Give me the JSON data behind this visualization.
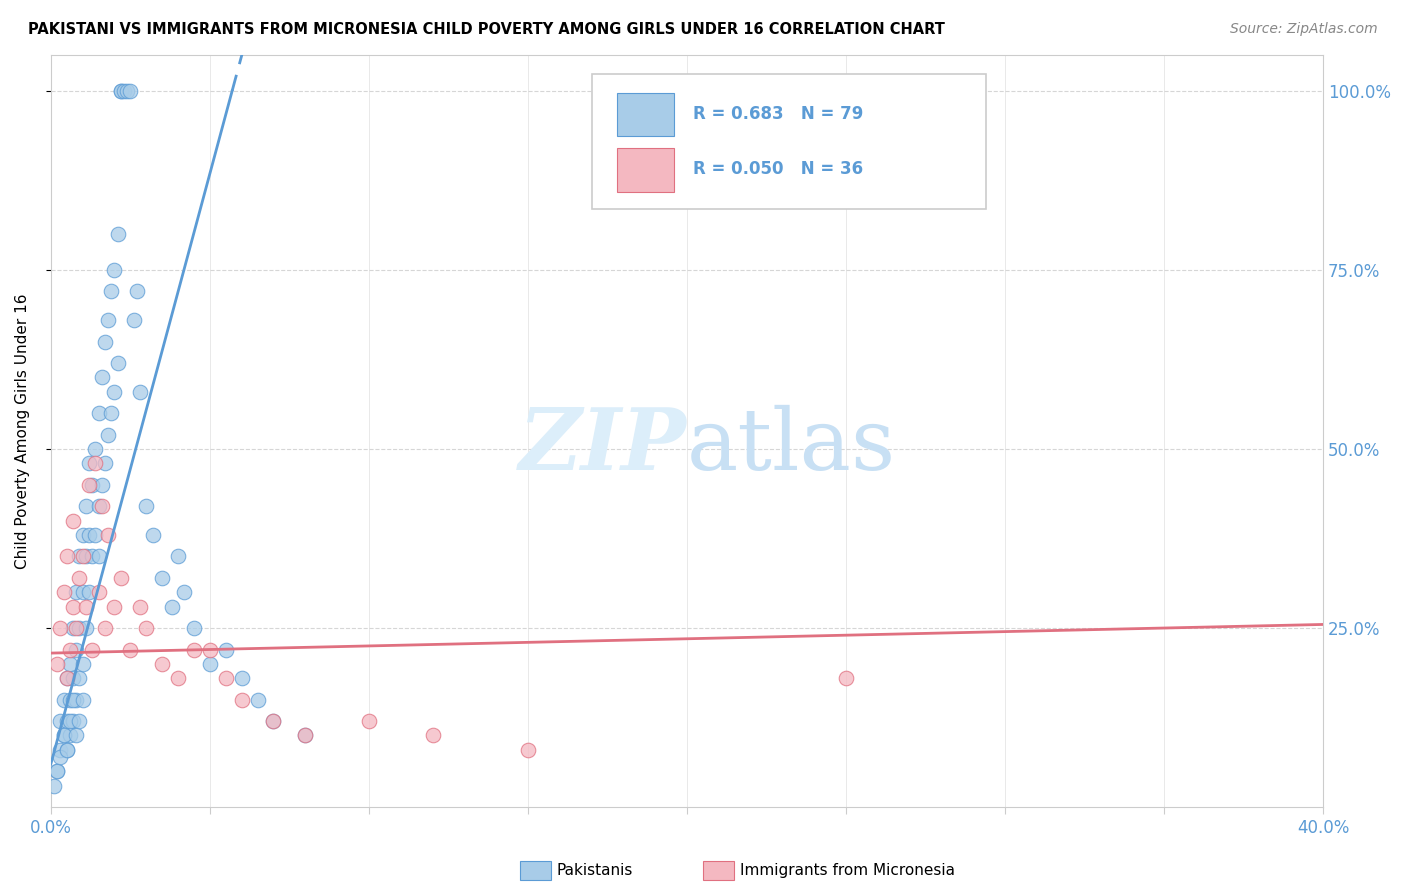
{
  "title": "PAKISTANI VS IMMIGRANTS FROM MICRONESIA CHILD POVERTY AMONG GIRLS UNDER 16 CORRELATION CHART",
  "source": "Source: ZipAtlas.com",
  "ylabel": "Child Poverty Among Girls Under 16",
  "watermark_zip": "ZIP",
  "watermark_atlas": "atlas",
  "legend_text1": "R = 0.683   N = 79",
  "legend_text2": "R = 0.050   N = 36",
  "legend_label1": "Pakistanis",
  "legend_label2": "Immigrants from Micronesia",
  "color_blue_fill": "#a8cce8",
  "color_blue_edge": "#5b9bd5",
  "color_pink_fill": "#f4b8c1",
  "color_pink_edge": "#e07080",
  "color_blue_line": "#5b9bd5",
  "color_pink_line": "#e07080",
  "color_blue_text": "#5b9bd5",
  "color_pink_text": "#e07080",
  "xlim": [
    0.0,
    0.4
  ],
  "ylim": [
    0.0,
    1.05
  ],
  "ytick_positions": [
    0.25,
    0.5,
    0.75,
    1.0
  ],
  "ytick_labels": [
    "25.0%",
    "50.0%",
    "75.0%",
    "100.0%"
  ],
  "xtick_left_label": "0.0%",
  "xtick_right_label": "40.0%",
  "pak_line_x0": 0.0,
  "pak_line_y0": 0.06,
  "pak_line_x1": 0.057,
  "pak_line_y1": 1.0,
  "pak_line_solid_end": 0.057,
  "pak_line_dash_end": 0.12,
  "mic_line_x0": 0.0,
  "mic_line_y0": 0.215,
  "mic_line_x1": 0.4,
  "mic_line_y1": 0.255,
  "pak_x": [
    0.002,
    0.003,
    0.003,
    0.004,
    0.004,
    0.005,
    0.005,
    0.005,
    0.006,
    0.006,
    0.006,
    0.007,
    0.007,
    0.007,
    0.008,
    0.008,
    0.008,
    0.009,
    0.009,
    0.009,
    0.01,
    0.01,
    0.01,
    0.011,
    0.011,
    0.011,
    0.012,
    0.012,
    0.012,
    0.013,
    0.013,
    0.014,
    0.014,
    0.015,
    0.015,
    0.015,
    0.016,
    0.016,
    0.017,
    0.017,
    0.018,
    0.018,
    0.019,
    0.019,
    0.02,
    0.02,
    0.021,
    0.021,
    0.022,
    0.022,
    0.023,
    0.024,
    0.025,
    0.026,
    0.027,
    0.028,
    0.03,
    0.032,
    0.035,
    0.038,
    0.04,
    0.042,
    0.045,
    0.05,
    0.055,
    0.06,
    0.065,
    0.07,
    0.08,
    0.001,
    0.002,
    0.003,
    0.004,
    0.005,
    0.006,
    0.007,
    0.008,
    0.009,
    0.01
  ],
  "pak_y": [
    0.05,
    0.08,
    0.12,
    0.1,
    0.15,
    0.08,
    0.12,
    0.18,
    0.1,
    0.15,
    0.2,
    0.12,
    0.18,
    0.25,
    0.15,
    0.22,
    0.3,
    0.18,
    0.25,
    0.35,
    0.2,
    0.3,
    0.38,
    0.25,
    0.35,
    0.42,
    0.3,
    0.38,
    0.48,
    0.35,
    0.45,
    0.38,
    0.5,
    0.42,
    0.35,
    0.55,
    0.45,
    0.6,
    0.48,
    0.65,
    0.52,
    0.68,
    0.55,
    0.72,
    0.58,
    0.75,
    0.62,
    0.8,
    1.0,
    1.0,
    1.0,
    1.0,
    1.0,
    0.68,
    0.72,
    0.58,
    0.42,
    0.38,
    0.32,
    0.28,
    0.35,
    0.3,
    0.25,
    0.2,
    0.22,
    0.18,
    0.15,
    0.12,
    0.1,
    0.03,
    0.05,
    0.07,
    0.1,
    0.08,
    0.12,
    0.15,
    0.1,
    0.12,
    0.15
  ],
  "mic_x": [
    0.002,
    0.003,
    0.004,
    0.005,
    0.005,
    0.006,
    0.007,
    0.007,
    0.008,
    0.009,
    0.01,
    0.011,
    0.012,
    0.013,
    0.014,
    0.015,
    0.016,
    0.017,
    0.018,
    0.02,
    0.022,
    0.025,
    0.028,
    0.03,
    0.035,
    0.04,
    0.045,
    0.05,
    0.055,
    0.06,
    0.07,
    0.08,
    0.1,
    0.12,
    0.15,
    0.25
  ],
  "mic_y": [
    0.2,
    0.25,
    0.3,
    0.18,
    0.35,
    0.22,
    0.28,
    0.4,
    0.25,
    0.32,
    0.35,
    0.28,
    0.45,
    0.22,
    0.48,
    0.3,
    0.42,
    0.25,
    0.38,
    0.28,
    0.32,
    0.22,
    0.28,
    0.25,
    0.2,
    0.18,
    0.22,
    0.22,
    0.18,
    0.15,
    0.12,
    0.1,
    0.12,
    0.1,
    0.08,
    0.18
  ]
}
